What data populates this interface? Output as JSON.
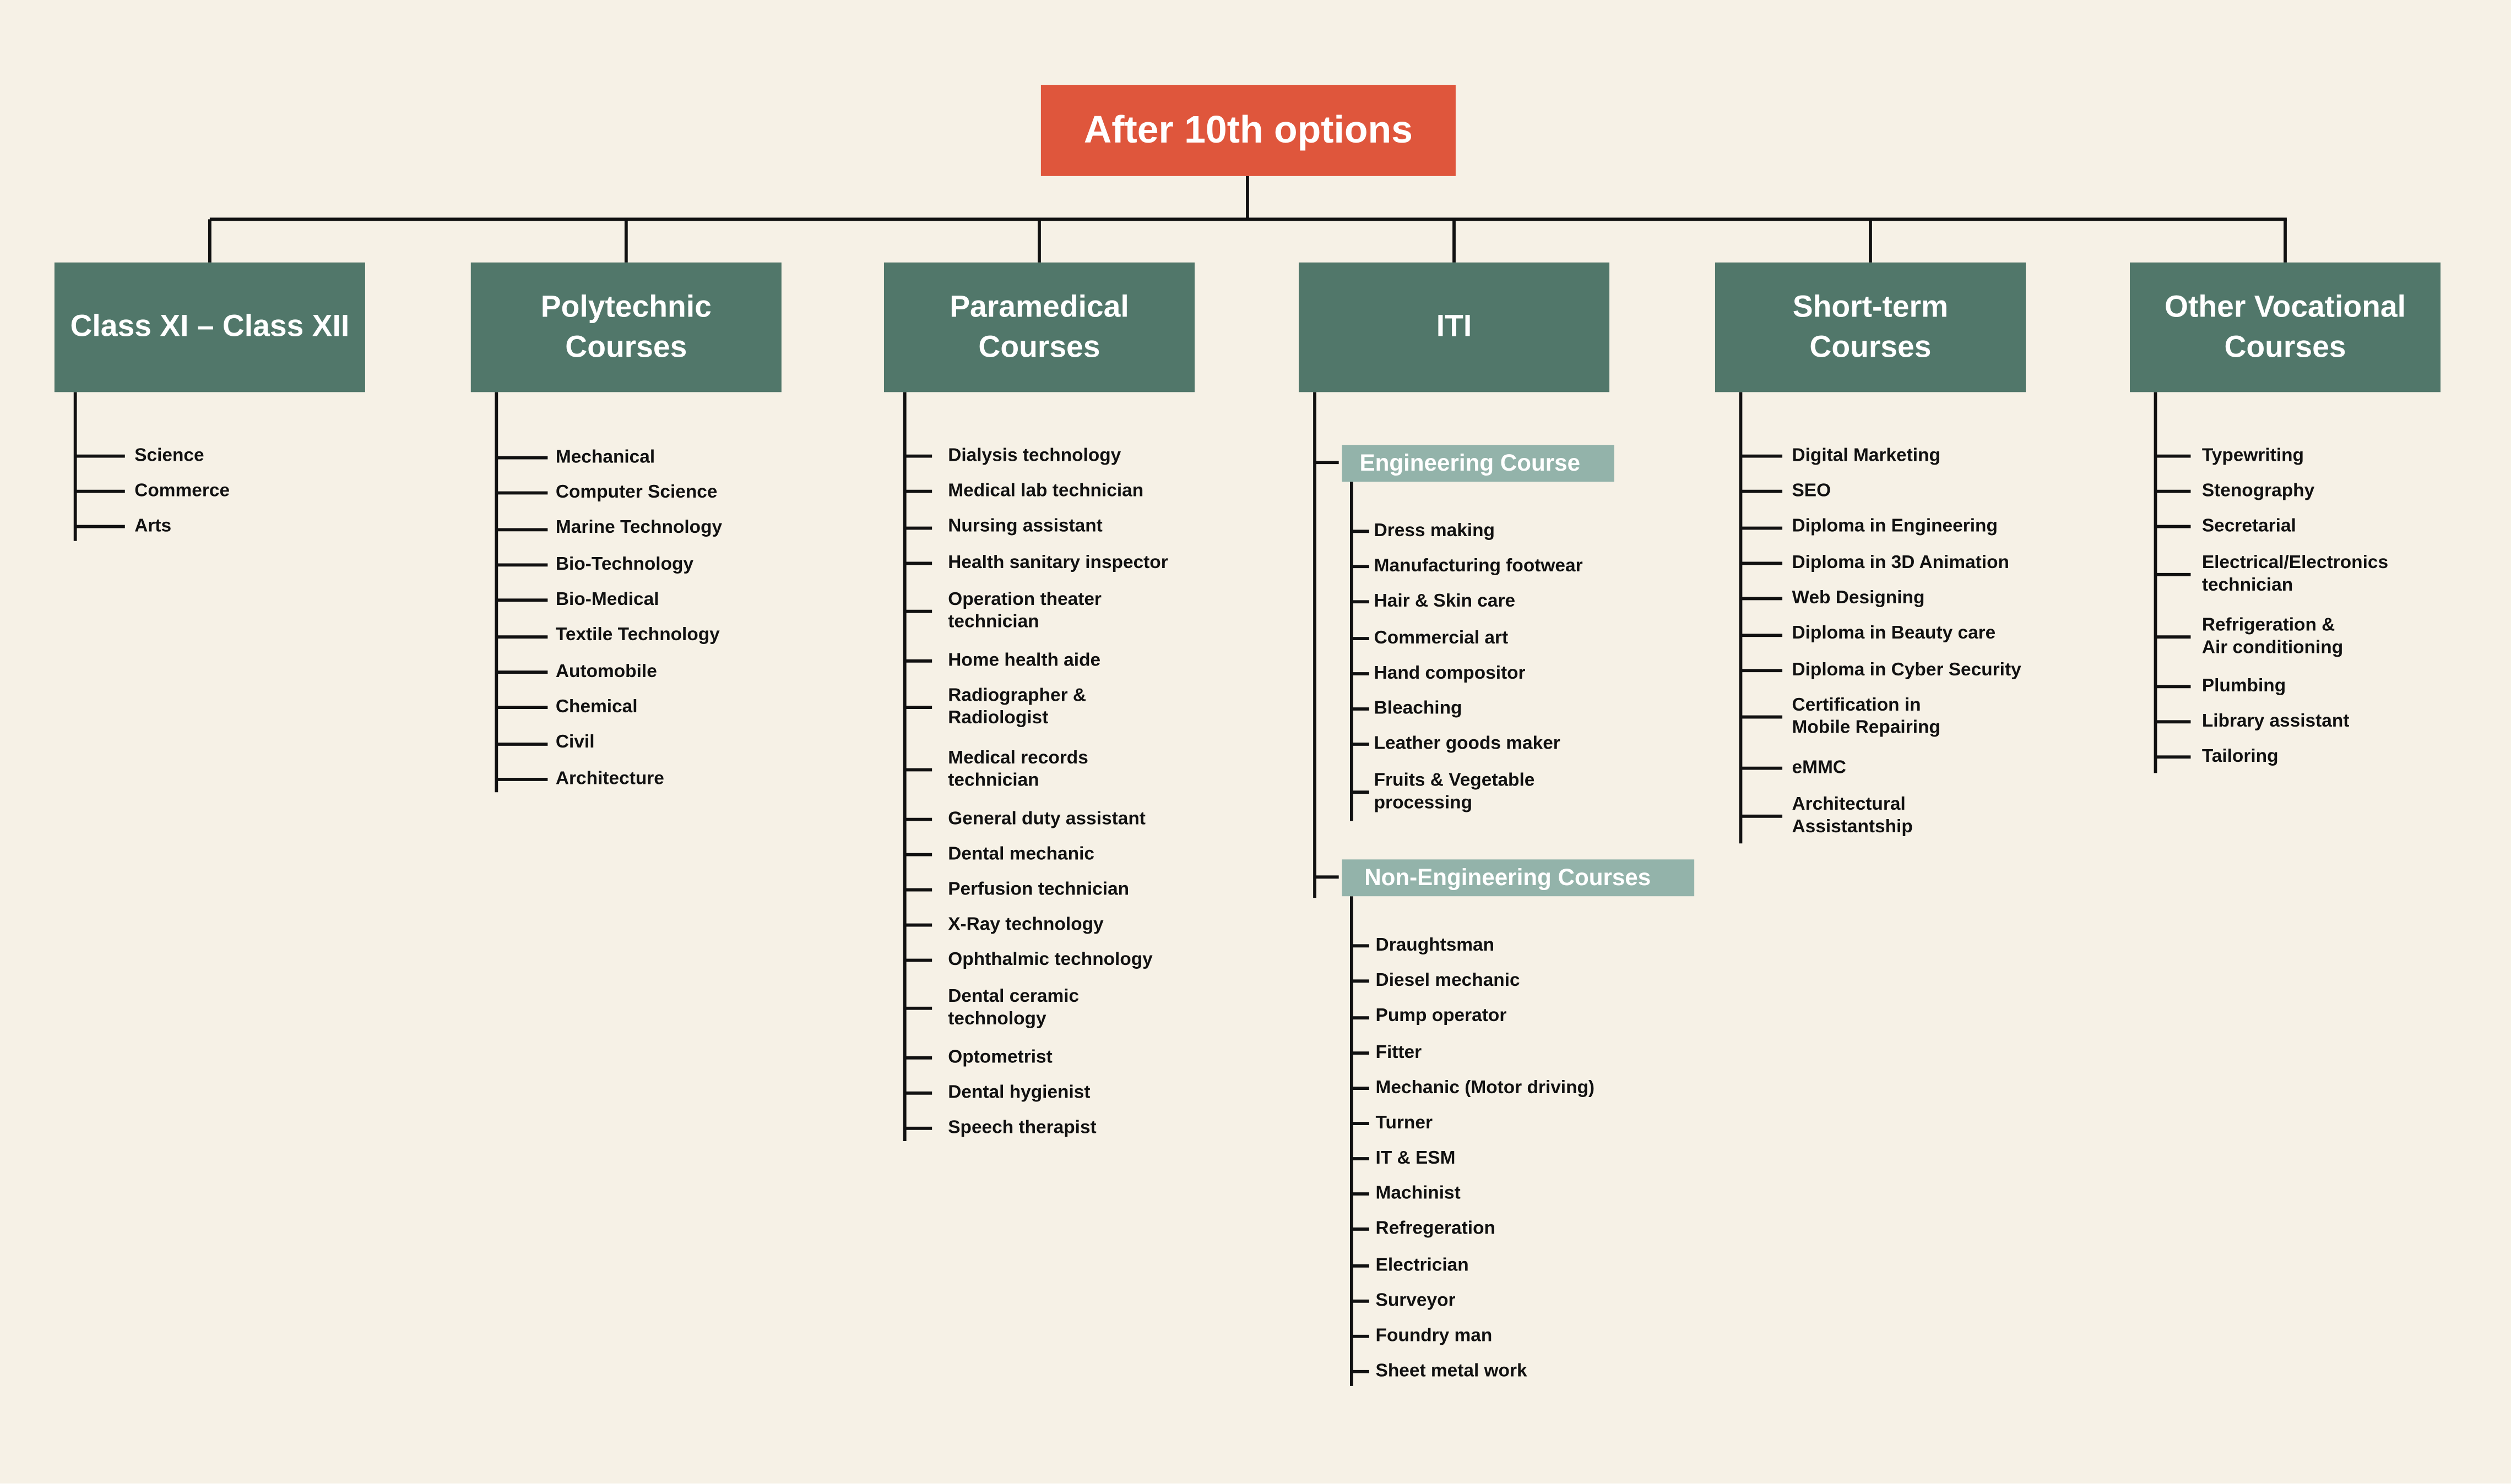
{
  "root": {
    "title": "After 10th options"
  },
  "colors": {
    "background": "#f6f1e6",
    "root": "#df563c",
    "category": "#51776a",
    "subheader": "#93b3aa",
    "line": "#111111"
  },
  "categories": [
    {
      "title": "Class XI – Class XII",
      "items": [
        "Science",
        "Commerce",
        "Arts"
      ]
    },
    {
      "title": "Polytechnic\nCourses",
      "items": [
        "Mechanical",
        "Computer Science",
        "Marine Technology",
        "Bio-Technology",
        "Bio-Medical",
        "Textile Technology",
        "Automobile",
        "Chemical",
        "Civil",
        "Architecture"
      ]
    },
    {
      "title": "Paramedical\nCourses",
      "items": [
        "Dialysis technology",
        "Medical lab technician",
        "Nursing assistant",
        "Health sanitary inspector",
        "Operation theater\ntechnician",
        "Home health aide",
        "Radiographer &\nRadiologist",
        "Medical records\ntechnician",
        "General duty assistant",
        "Dental mechanic",
        "Perfusion technician",
        "X-Ray technology",
        "Ophthalmic technology",
        "Dental ceramic\ntechnology",
        "Optometrist",
        "Dental hygienist",
        "Speech therapist"
      ]
    },
    {
      "title": "ITI",
      "groups": [
        {
          "title": "Engineering Course",
          "items": [
            "Dress making",
            "Manufacturing footwear",
            "Hair & Skin care",
            "Commercial art",
            "Hand compositor",
            "Bleaching",
            "Leather goods maker",
            "Fruits & Vegetable\nprocessing"
          ]
        },
        {
          "title": "Non-Engineering Courses",
          "items": [
            "Draughtsman",
            "Diesel mechanic",
            "Pump operator",
            "Fitter",
            "Mechanic (Motor driving)",
            "Turner",
            "IT & ESM",
            "Machinist",
            "Refregeration",
            "Electrician",
            "Surveyor",
            "Foundry man",
            "Sheet metal work"
          ]
        }
      ]
    },
    {
      "title": "Short-term\nCourses",
      "items": [
        "Digital Marketing",
        "SEO",
        "Diploma in Engineering",
        "Diploma in 3D Animation",
        "Web Designing",
        "Diploma in Beauty care",
        "Diploma in Cyber Security",
        "Certification in\nMobile Repairing",
        "eMMC",
        "Architectural\nAssistantship"
      ]
    },
    {
      "title": "Other Vocational\nCourses",
      "items": [
        "Typewriting",
        "Stenography",
        "Secretarial",
        "Electrical/Electronics\n technician",
        "Refrigeration &\nAir conditioning",
        "Plumbing",
        "Library assistant",
        "Tailoring"
      ]
    }
  ]
}
